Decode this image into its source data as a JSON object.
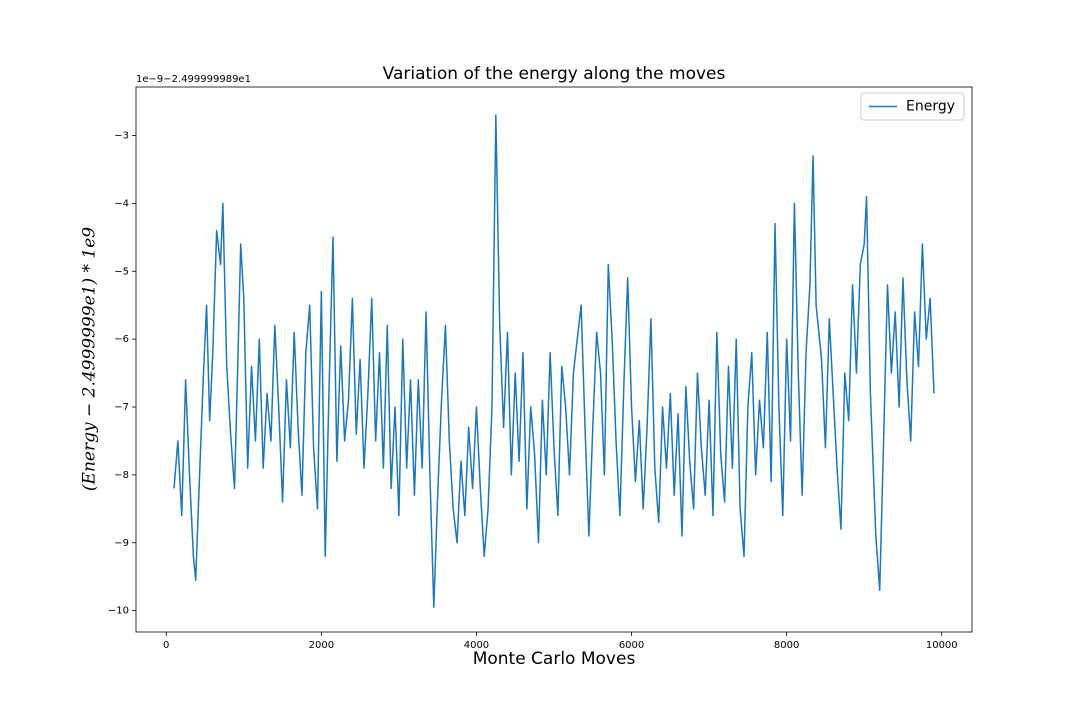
{
  "chart_data": {
    "type": "line",
    "title": "Variation of the energy along the moves",
    "xlabel": "Monte Carlo Moves",
    "ylabel": "(Energy − 2.4999999e1) * 1e9",
    "offset_text": "1e−9−2.499999989e1",
    "legend_loc": "upper right",
    "xlim": [
      -390,
      10390
    ],
    "ylim": [
      -10.315,
      -2.285
    ],
    "xticks": [
      0,
      2000,
      4000,
      6000,
      8000,
      10000
    ],
    "yticks": [
      {
        "value": -10,
        "label": "−10"
      },
      {
        "value": -9,
        "label": "−9"
      },
      {
        "value": -8,
        "label": "−8"
      },
      {
        "value": -7,
        "label": "−7"
      },
      {
        "value": -6,
        "label": "−6"
      },
      {
        "value": -5,
        "label": "−5"
      },
      {
        "value": -4,
        "label": "−4"
      },
      {
        "value": -3,
        "label": "−3"
      }
    ],
    "x": [
      100,
      150,
      200,
      250,
      300,
      350,
      380,
      420,
      480,
      520,
      560,
      600,
      650,
      700,
      730,
      780,
      830,
      880,
      920,
      960,
      1000,
      1050,
      1100,
      1150,
      1200,
      1250,
      1300,
      1350,
      1400,
      1450,
      1500,
      1550,
      1600,
      1650,
      1700,
      1750,
      1800,
      1850,
      1900,
      1950,
      2000,
      2050,
      2100,
      2150,
      2200,
      2250,
      2300,
      2350,
      2400,
      2450,
      2500,
      2550,
      2600,
      2650,
      2700,
      2750,
      2800,
      2850,
      2900,
      2950,
      3000,
      3050,
      3100,
      3150,
      3200,
      3250,
      3300,
      3350,
      3400,
      3450,
      3500,
      3550,
      3600,
      3650,
      3700,
      3750,
      3800,
      3850,
      3900,
      3950,
      4000,
      4050,
      4100,
      4150,
      4200,
      4250,
      4300,
      4350,
      4400,
      4450,
      4500,
      4550,
      4600,
      4650,
      4700,
      4750,
      4800,
      4850,
      4900,
      4950,
      5000,
      5050,
      5100,
      5150,
      5200,
      5250,
      5300,
      5350,
      5400,
      5450,
      5500,
      5550,
      5600,
      5650,
      5700,
      5750,
      5800,
      5850,
      5900,
      5950,
      6000,
      6050,
      6100,
      6150,
      6200,
      6250,
      6300,
      6350,
      6400,
      6450,
      6500,
      6550,
      6600,
      6650,
      6700,
      6750,
      6800,
      6850,
      6900,
      6950,
      7000,
      7050,
      7100,
      7150,
      7200,
      7250,
      7300,
      7350,
      7400,
      7450,
      7500,
      7550,
      7600,
      7650,
      7700,
      7750,
      7800,
      7850,
      7900,
      7950,
      8000,
      8050,
      8100,
      8150,
      8200,
      8250,
      8300,
      8340,
      8380,
      8450,
      8500,
      8550,
      8600,
      8650,
      8700,
      8750,
      8800,
      8850,
      8900,
      8950,
      9000,
      9030,
      9080,
      9150,
      9200,
      9250,
      9300,
      9350,
      9400,
      9450,
      9500,
      9550,
      9600,
      9650,
      9700,
      9750,
      9800,
      9850,
      9900
    ],
    "series": [
      {
        "name": "Energy",
        "color": "#1f77b4",
        "values": [
          -8.2,
          -7.5,
          -8.6,
          -6.6,
          -8.0,
          -9.2,
          -9.55,
          -8.3,
          -6.5,
          -5.5,
          -7.2,
          -6.2,
          -4.4,
          -4.9,
          -4.0,
          -6.4,
          -7.4,
          -8.2,
          -6.5,
          -4.6,
          -5.4,
          -7.9,
          -6.4,
          -7.5,
          -6.0,
          -7.9,
          -6.8,
          -7.5,
          -5.8,
          -7.0,
          -8.4,
          -6.6,
          -7.6,
          -5.9,
          -7.3,
          -8.3,
          -6.2,
          -5.5,
          -7.6,
          -8.5,
          -5.3,
          -9.2,
          -6.7,
          -4.5,
          -7.8,
          -6.1,
          -7.5,
          -6.9,
          -5.4,
          -7.4,
          -6.3,
          -7.9,
          -6.8,
          -5.4,
          -7.5,
          -6.2,
          -7.9,
          -5.8,
          -8.2,
          -7.0,
          -8.6,
          -6.0,
          -7.9,
          -6.6,
          -8.3,
          -6.6,
          -7.9,
          -5.6,
          -8.0,
          -9.95,
          -8.3,
          -6.9,
          -5.8,
          -7.5,
          -8.5,
          -9.0,
          -7.8,
          -8.6,
          -7.3,
          -8.2,
          -7.0,
          -8.2,
          -9.2,
          -8.5,
          -7.0,
          -2.7,
          -5.8,
          -7.3,
          -5.9,
          -8.0,
          -6.5,
          -7.8,
          -6.2,
          -8.5,
          -7.0,
          -7.7,
          -9.0,
          -6.9,
          -8.0,
          -6.2,
          -7.6,
          -8.6,
          -6.4,
          -7.0,
          -8.0,
          -6.5,
          -6.0,
          -5.5,
          -7.3,
          -8.9,
          -7.3,
          -5.9,
          -6.5,
          -8.0,
          -4.9,
          -6.0,
          -7.5,
          -8.6,
          -6.7,
          -5.1,
          -7.0,
          -8.1,
          -7.2,
          -8.5,
          -7.3,
          -5.7,
          -7.9,
          -8.7,
          -7.0,
          -7.9,
          -6.8,
          -8.3,
          -7.1,
          -8.9,
          -6.7,
          -7.8,
          -8.5,
          -6.5,
          -7.6,
          -8.3,
          -6.9,
          -8.6,
          -5.9,
          -7.7,
          -8.4,
          -6.4,
          -7.9,
          -6.0,
          -8.5,
          -9.2,
          -7.0,
          -6.2,
          -8.0,
          -6.9,
          -7.6,
          -5.9,
          -8.1,
          -4.3,
          -7.0,
          -8.6,
          -6.0,
          -7.5,
          -4.0,
          -6.5,
          -8.3,
          -6.2,
          -5.2,
          -3.3,
          -5.5,
          -6.3,
          -7.6,
          -5.7,
          -6.8,
          -7.9,
          -8.8,
          -6.5,
          -7.2,
          -5.2,
          -6.5,
          -4.9,
          -4.6,
          -3.9,
          -6.8,
          -8.9,
          -9.7,
          -7.5,
          -5.2,
          -6.5,
          -5.6,
          -7.0,
          -5.1,
          -6.6,
          -7.5,
          -5.6,
          -6.4,
          -4.6,
          -6.0,
          -5.4,
          -6.8
        ]
      }
    ]
  }
}
